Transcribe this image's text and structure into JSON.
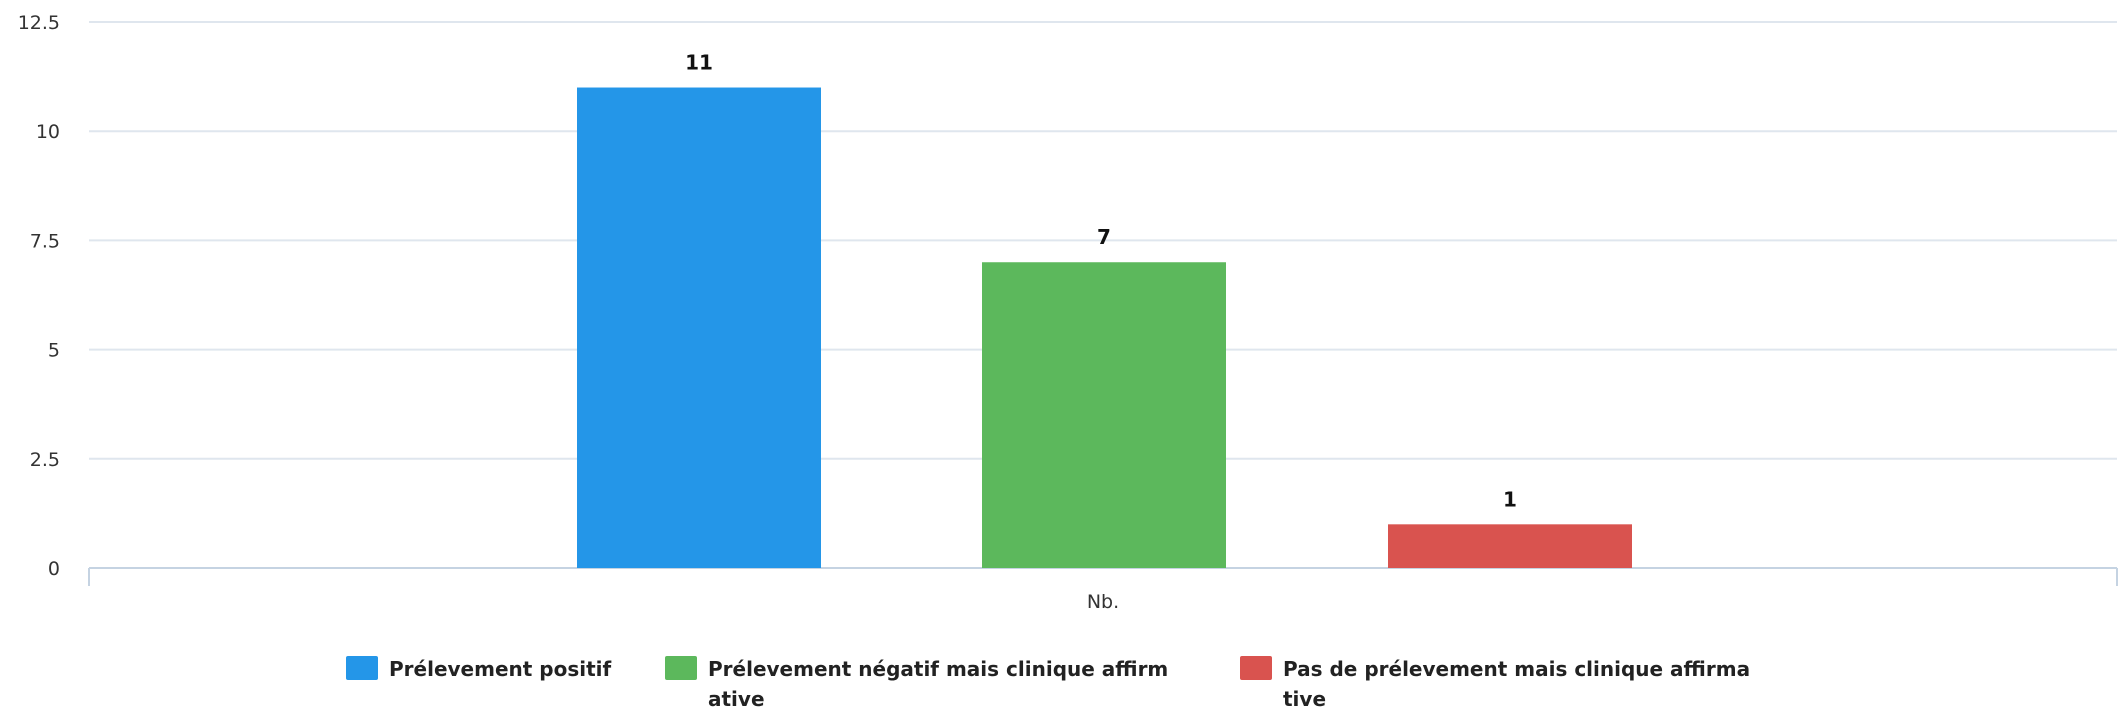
{
  "chart_data": {
    "type": "bar",
    "categories": [
      "Nb."
    ],
    "series": [
      {
        "name": "Prélevement positif",
        "legend_lines": [
          "Prélevement positif"
        ],
        "color": "#2496e8",
        "values": [
          11
        ]
      },
      {
        "name": "Prélevement négatif mais clinique affirmative",
        "legend_lines": [
          "Prélevement négatif mais clinique affirm",
          "ative"
        ],
        "color": "#5cb85c",
        "values": [
          7
        ]
      },
      {
        "name": "Pas de prélevement mais clinique affirmative",
        "legend_lines": [
          "Pas de prélevement mais clinique affirma",
          "tive"
        ],
        "color": "#d9534f",
        "values": [
          1
        ]
      }
    ],
    "title": "",
    "xlabel": "",
    "ylabel": "",
    "ylim": [
      0,
      12.5
    ],
    "yticks": [
      0,
      2.5,
      5,
      7.5,
      10,
      12.5
    ],
    "ytick_labels": [
      "0",
      "2.5",
      "5",
      "7.5",
      "10",
      "12.5"
    ],
    "data_labels": [
      "11",
      "7",
      "1"
    ],
    "grid": true,
    "legend_position": "bottom-center"
  }
}
